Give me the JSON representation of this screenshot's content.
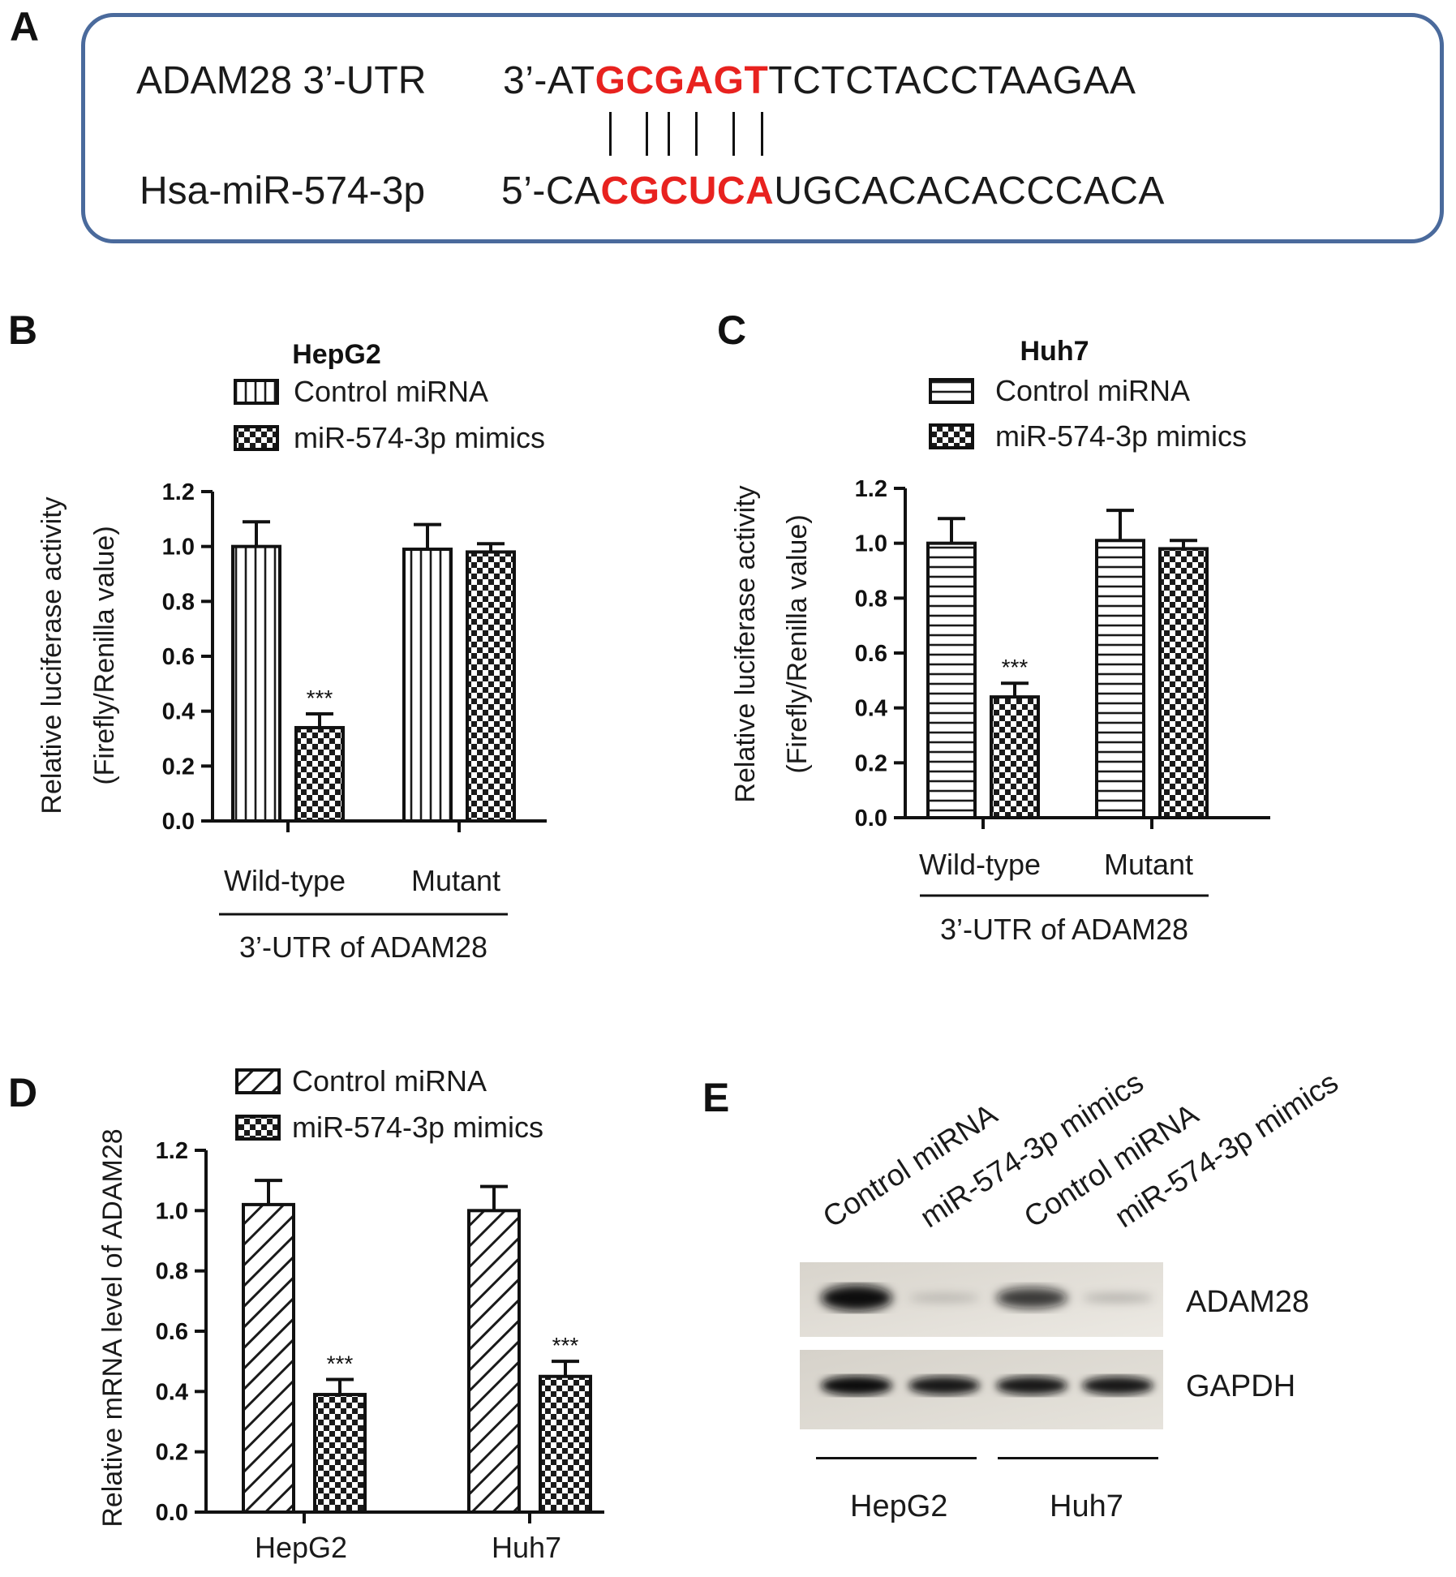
{
  "panels": {
    "A": {
      "letter": "A",
      "rows": [
        {
          "label": "ADAM28 3’-UTR",
          "prefix": "3’-AT",
          "seed": "GCGAGT",
          "suffix": "TCTCTACCTAAGAA"
        },
        {
          "label": "Hsa-miR-574-3p",
          "prefix": "5’-CA",
          "seed": "CGCUCA",
          "suffix": "UGCACACACCCACA"
        }
      ],
      "seed_color": "#e8221f",
      "box_color": "#4a6a9c"
    },
    "B": {
      "letter": "B"
    },
    "C": {
      "letter": "C"
    },
    "D": {
      "letter": "D"
    },
    "E": {
      "letter": "E",
      "lanes": [
        "Control miRNA",
        "miR-574-3p mimics",
        "Control miRNA",
        "miR-574-3p mimics"
      ],
      "bands": [
        "ADAM28",
        "GAPDH"
      ],
      "band_intensity": {
        "ADAM28": [
          1.0,
          0.2,
          0.8,
          0.25
        ],
        "GAPDH": [
          1.0,
          0.95,
          0.95,
          0.95
        ]
      },
      "groups": [
        "HepG2",
        "Huh7"
      ]
    }
  },
  "chart_data": [
    {
      "id": "B",
      "type": "bar",
      "title": "HepG2",
      "ylabel": [
        "Relative luciferase activity",
        "(Firefly/Renilla value)"
      ],
      "xlabel": "3’-UTR of ADAM28",
      "categories": [
        "Wild-type",
        "Mutant"
      ],
      "ylim": [
        0,
        1.2
      ],
      "yticks": [
        "0.0",
        "0.2",
        "0.4",
        "0.6",
        "0.8",
        "1.0",
        "1.2"
      ],
      "legend_position": "top",
      "series": [
        {
          "name": "Control miRNA",
          "pattern": "vertical",
          "values": [
            1.0,
            0.99
          ],
          "errors": [
            0.09,
            0.09
          ]
        },
        {
          "name": "miR-574-3p mimics",
          "pattern": "checker",
          "values": [
            0.34,
            0.98
          ],
          "errors": [
            0.05,
            0.03
          ]
        }
      ],
      "annotations": [
        {
          "series": 1,
          "category": 0,
          "text": "***"
        }
      ]
    },
    {
      "id": "C",
      "type": "bar",
      "title": "Huh7",
      "ylabel": [
        "Relative luciferase activity",
        "(Firefly/Renilla value)"
      ],
      "xlabel": "3’-UTR of ADAM28",
      "categories": [
        "Wild-type",
        "Mutant"
      ],
      "ylim": [
        0,
        1.2
      ],
      "yticks": [
        "0.0",
        "0.2",
        "0.4",
        "0.6",
        "0.8",
        "1.0",
        "1.2"
      ],
      "legend_position": "top",
      "series": [
        {
          "name": "Control miRNA",
          "pattern": "horizontal",
          "values": [
            1.0,
            1.01
          ],
          "errors": [
            0.09,
            0.11
          ]
        },
        {
          "name": "miR-574-3p mimics",
          "pattern": "checker",
          "values": [
            0.44,
            0.98
          ],
          "errors": [
            0.05,
            0.03
          ]
        }
      ],
      "annotations": [
        {
          "series": 1,
          "category": 0,
          "text": "***"
        }
      ]
    },
    {
      "id": "D",
      "type": "bar",
      "title": "",
      "ylabel": [
        "Relative mRNA level of ADAM28"
      ],
      "xlabel": "",
      "categories": [
        "HepG2",
        "Huh7"
      ],
      "ylim": [
        0,
        1.2
      ],
      "yticks": [
        "0.0",
        "0.2",
        "0.4",
        "0.6",
        "0.8",
        "1.0",
        "1.2"
      ],
      "legend_position": "top",
      "series": [
        {
          "name": "Control miRNA",
          "pattern": "diagonal",
          "values": [
            1.02,
            1.0
          ],
          "errors": [
            0.08,
            0.08
          ]
        },
        {
          "name": "miR-574-3p mimics",
          "pattern": "checker",
          "values": [
            0.39,
            0.45
          ],
          "errors": [
            0.05,
            0.05
          ]
        }
      ],
      "annotations": [
        {
          "series": 1,
          "category": 0,
          "text": "***"
        },
        {
          "series": 1,
          "category": 1,
          "text": "***"
        }
      ]
    }
  ]
}
